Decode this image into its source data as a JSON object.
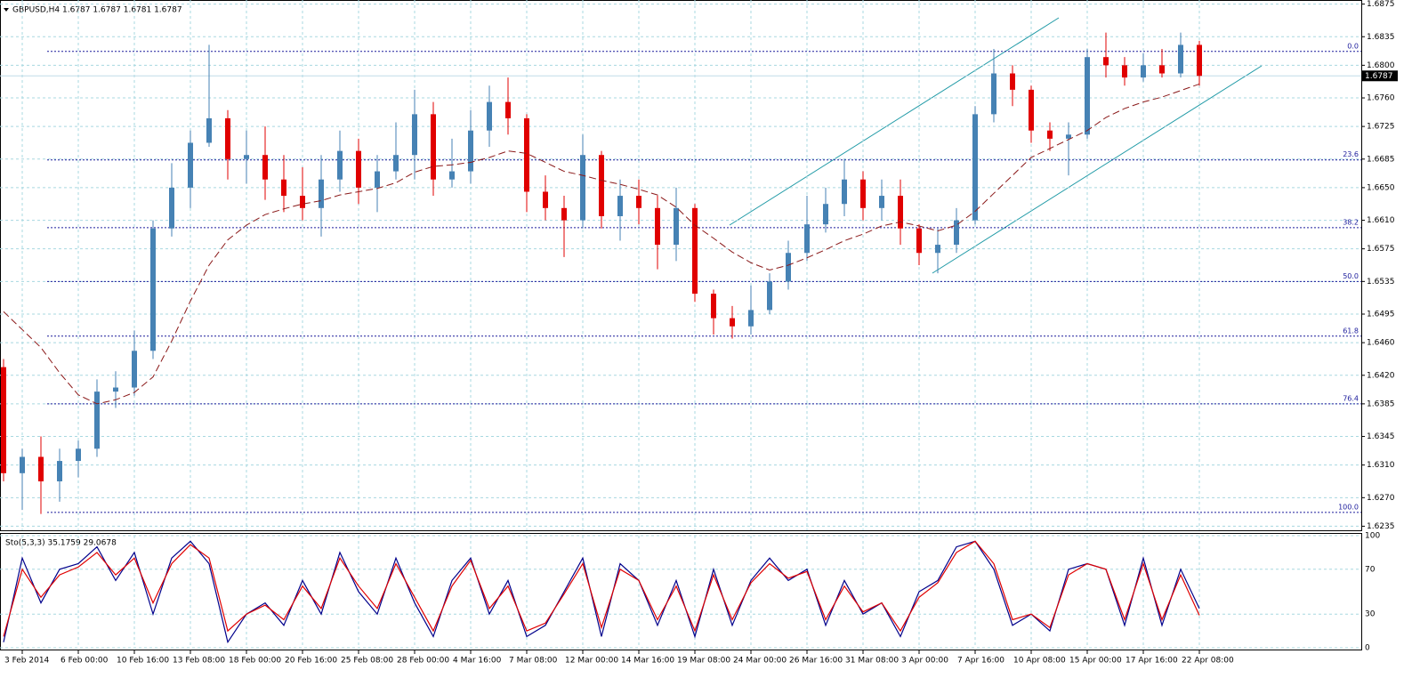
{
  "chart_data": {
    "type": "candlestick",
    "title": "GBPUSD,H4 1.6787 1.6787 1.6781 1.6787",
    "categories": [
      null,
      "3 Feb 2014",
      null,
      null,
      "6 Feb 00:00",
      null,
      null,
      "10 Feb 16:00",
      null,
      null,
      "13 Feb 08:00",
      null,
      null,
      "18 Feb 00:00",
      null,
      null,
      "20 Feb 16:00",
      null,
      null,
      "25 Feb 08:00",
      null,
      null,
      "28 Feb 00:00",
      null,
      null,
      "4 Mar 16:00",
      null,
      null,
      "7 Mar 08:00",
      null,
      null,
      "12 Mar 00:00",
      null,
      null,
      "14 Mar 16:00",
      null,
      null,
      "19 Mar 08:00",
      null,
      null,
      "24 Mar 00:00",
      null,
      null,
      "26 Mar 16:00",
      null,
      null,
      "31 Mar 08:00",
      null,
      null,
      "3 Apr 00:00",
      null,
      null,
      "7 Apr 16:00",
      null,
      null,
      "10 Apr 08:00",
      null,
      null,
      "15 Apr 00:00",
      null,
      null,
      "17 Apr 16:00",
      null,
      null,
      "22 Apr 08:00"
    ],
    "open": [
      1.643,
      1.63,
      1.632,
      1.629,
      1.6315,
      1.633,
      1.64,
      1.6405,
      1.645,
      1.66,
      1.665,
      1.6705,
      1.6735,
      1.6685,
      1.669,
      1.666,
      1.664,
      1.6625,
      1.666,
      1.6695,
      1.665,
      1.667,
      1.669,
      1.674,
      1.666,
      1.667,
      1.672,
      1.6755,
      1.6735,
      1.6645,
      1.6625,
      1.661,
      1.669,
      1.6615,
      1.664,
      1.6625,
      1.658,
      1.6625,
      1.652,
      1.649,
      1.648,
      1.65,
      1.6535,
      1.657,
      1.6605,
      1.663,
      1.666,
      1.6625,
      1.664,
      1.66,
      1.657,
      1.658,
      1.661,
      1.674,
      1.679,
      1.677,
      1.672,
      1.671,
      1.6715,
      1.681,
      1.68,
      1.6785,
      1.68,
      1.679,
      1.6825
    ],
    "high": [
      1.644,
      1.633,
      1.6345,
      1.633,
      1.634,
      1.6415,
      1.6425,
      1.6475,
      1.661,
      1.668,
      1.672,
      1.6825,
      1.6745,
      1.672,
      1.6725,
      1.669,
      1.6675,
      1.669,
      1.672,
      1.671,
      1.669,
      1.673,
      1.677,
      1.6755,
      1.671,
      1.6745,
      1.6775,
      1.6785,
      1.674,
      1.6665,
      1.664,
      1.6715,
      1.6695,
      1.666,
      1.666,
      1.664,
      1.665,
      1.663,
      1.6525,
      1.6505,
      1.653,
      1.6545,
      1.6585,
      1.664,
      1.665,
      1.6685,
      1.667,
      1.666,
      1.666,
      1.6605,
      1.66,
      1.6625,
      1.675,
      1.682,
      1.68,
      1.6775,
      1.673,
      1.673,
      1.682,
      1.684,
      1.681,
      1.6815,
      1.682,
      1.684,
      1.683
    ],
    "low": [
      1.629,
      1.6255,
      1.625,
      1.6265,
      1.6295,
      1.632,
      1.638,
      1.6395,
      1.644,
      1.659,
      1.6625,
      1.67,
      1.666,
      1.6655,
      1.6635,
      1.662,
      1.661,
      1.659,
      1.6645,
      1.663,
      1.662,
      1.666,
      1.666,
      1.664,
      1.665,
      1.6655,
      1.67,
      1.6715,
      1.662,
      1.661,
      1.6565,
      1.66,
      1.66,
      1.6585,
      1.6605,
      1.655,
      1.656,
      1.651,
      1.647,
      1.6465,
      1.647,
      1.6495,
      1.6525,
      1.656,
      1.6595,
      1.6615,
      1.661,
      1.661,
      1.658,
      1.6555,
      1.6545,
      1.657,
      1.6605,
      1.673,
      1.675,
      1.6705,
      1.6695,
      1.6665,
      1.671,
      1.6785,
      1.6775,
      1.678,
      1.6785,
      1.6785,
      1.6775
    ],
    "close": [
      1.63,
      1.632,
      1.629,
      1.6315,
      1.633,
      1.64,
      1.6405,
      1.645,
      1.66,
      1.665,
      1.6705,
      1.6735,
      1.6685,
      1.669,
      1.666,
      1.664,
      1.6625,
      1.666,
      1.6695,
      1.665,
      1.667,
      1.669,
      1.674,
      1.666,
      1.667,
      1.672,
      1.6755,
      1.6735,
      1.6645,
      1.6625,
      1.661,
      1.669,
      1.6615,
      1.664,
      1.6625,
      1.658,
      1.6625,
      1.652,
      1.649,
      1.648,
      1.65,
      1.6535,
      1.657,
      1.6605,
      1.663,
      1.666,
      1.6625,
      1.664,
      1.66,
      1.657,
      1.658,
      1.661,
      1.674,
      1.679,
      1.677,
      1.672,
      1.671,
      1.6715,
      1.681,
      1.68,
      1.6785,
      1.68,
      1.679,
      1.6825,
      1.6787
    ],
    "up_color": "#4682b4",
    "down_color": "#e00000",
    "ylim": [
      1.623,
      1.688
    ],
    "yticks": [
      1.6875,
      1.6835,
      {
        "value": 1.68,
        "label": "1.6800"
      },
      {
        "value": 1.676,
        "label": "1.6760"
      },
      1.6725,
      1.6685,
      {
        "value": 1.665,
        "label": "1.6650"
      },
      {
        "value": 1.661,
        "label": "1.6610"
      },
      1.6575,
      1.6535,
      1.6495,
      {
        "value": 1.646,
        "label": "1.6460"
      },
      {
        "value": 1.642,
        "label": "1.6420"
      },
      1.6385,
      1.6345,
      {
        "value": 1.631,
        "label": "1.6310"
      },
      {
        "value": 1.627,
        "label": "1.6270"
      },
      1.6235
    ],
    "grid": true,
    "moving_average": {
      "color": "#8b1a1a",
      "values": [
        1.6498,
        1.6476,
        1.6454,
        1.6423,
        1.6396,
        1.6385,
        1.639,
        1.6399,
        1.6418,
        1.6462,
        1.6511,
        1.6555,
        1.6586,
        1.6604,
        1.6617,
        1.6624,
        1.663,
        1.6634,
        1.6641,
        1.6645,
        1.6649,
        1.6656,
        1.6669,
        1.6676,
        1.6678,
        1.6681,
        1.6687,
        1.6695,
        1.6692,
        1.6681,
        1.667,
        1.6665,
        1.6659,
        1.6654,
        1.6648,
        1.6641,
        1.6626,
        1.6604,
        1.6588,
        1.6571,
        1.6558,
        1.6549,
        1.6555,
        1.6564,
        1.6574,
        1.6585,
        1.6593,
        1.6603,
        1.6608,
        1.6603,
        1.6597,
        1.6604,
        1.6621,
        1.6643,
        1.6665,
        1.6687,
        1.6698,
        1.6709,
        1.672,
        1.6736,
        1.6747,
        1.6755,
        1.6761,
        1.6769,
        1.6777
      ]
    },
    "fib_color": "#1c1c9c",
    "fib_levels": [
      {
        "label": "0.0",
        "value": 1.6817
      },
      {
        "label": "23.6",
        "value": 1.6684
      },
      {
        "label": "38.2",
        "value": 1.6601
      },
      {
        "label": "50.0",
        "value": 1.6535
      },
      {
        "label": "61.8",
        "value": 1.6468
      },
      {
        "label": "76.4",
        "value": 1.6385
      },
      {
        "label": "100.0",
        "value": 1.6252
      }
    ],
    "last_price": 1.6787,
    "indicator": {
      "title": "Sto(5,3,3) 35.1759 29.0678",
      "ylim": [
        0,
        100
      ],
      "yticks": [
        0,
        30,
        70,
        100
      ],
      "series": [
        {
          "color": "#00008b",
          "values": [
            5,
            80,
            40,
            70,
            75,
            90,
            60,
            85,
            30,
            80,
            95,
            75,
            5,
            30,
            40,
            20,
            60,
            30,
            85,
            50,
            30,
            80,
            40,
            10,
            60,
            80,
            30,
            60,
            10,
            20,
            50,
            80,
            10,
            75,
            60,
            20,
            60,
            10,
            70,
            20,
            60,
            80,
            60,
            70,
            20,
            60,
            30,
            40,
            10,
            50,
            60,
            90,
            95,
            70,
            20,
            30,
            15,
            70,
            75,
            70,
            20,
            80,
            20,
            70,
            35
          ]
        },
        {
          "color": "#e00000",
          "values": [
            10,
            70,
            45,
            65,
            72,
            85,
            65,
            80,
            40,
            75,
            92,
            80,
            15,
            30,
            38,
            25,
            55,
            35,
            80,
            55,
            35,
            75,
            45,
            15,
            55,
            78,
            35,
            55,
            15,
            22,
            48,
            75,
            18,
            70,
            60,
            25,
            55,
            15,
            65,
            25,
            58,
            75,
            62,
            68,
            25,
            55,
            32,
            40,
            15,
            45,
            58,
            85,
            95,
            75,
            25,
            30,
            18,
            65,
            75,
            70,
            25,
            75,
            25,
            65,
            29
          ]
        }
      ]
    }
  }
}
